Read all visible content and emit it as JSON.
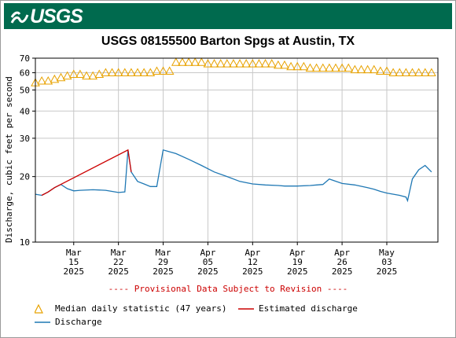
{
  "header": {
    "logo_text": "USGS",
    "logo_icon": "usgs-wave-logo-icon",
    "brand_color": "#006a4e"
  },
  "chart_data": {
    "type": "line",
    "title": "USGS 08155500 Barton Spgs at Austin, TX",
    "ylabel": "Discharge, cubic feet per second",
    "yscale": "log",
    "ylim": [
      10,
      70
    ],
    "grid": true,
    "yticks": [
      10,
      20,
      30,
      40,
      50,
      60,
      70
    ],
    "ytick_labels": [
      "10",
      "20",
      "30",
      "40",
      "50",
      "60",
      "70"
    ],
    "xlim": [
      "2025-03-09",
      "2025-05-11"
    ],
    "xticks": [
      {
        "date": "2025-03-15",
        "label": [
          "Mar",
          "15",
          "2025"
        ]
      },
      {
        "date": "2025-03-22",
        "label": [
          "Mar",
          "22",
          "2025"
        ]
      },
      {
        "date": "2025-03-29",
        "label": [
          "Mar",
          "29",
          "2025"
        ]
      },
      {
        "date": "2025-04-05",
        "label": [
          "Apr",
          "05",
          "2025"
        ]
      },
      {
        "date": "2025-04-12",
        "label": [
          "Apr",
          "12",
          "2025"
        ]
      },
      {
        "date": "2025-04-19",
        "label": [
          "Apr",
          "19",
          "2025"
        ]
      },
      {
        "date": "2025-04-26",
        "label": [
          "Apr",
          "26",
          "2025"
        ]
      },
      {
        "date": "2025-05-03",
        "label": [
          "May",
          "03",
          "2025"
        ]
      }
    ],
    "note": "---- Provisional Data Subject to Revision ----",
    "legend_placement": "bottom",
    "series": [
      {
        "name": "Median daily statistic (47 years)",
        "style": "triangle-markers",
        "color": "#e8a200",
        "x": [
          "2025-03-09",
          "2025-03-10",
          "2025-03-11",
          "2025-03-12",
          "2025-03-13",
          "2025-03-14",
          "2025-03-15",
          "2025-03-16",
          "2025-03-17",
          "2025-03-18",
          "2025-03-19",
          "2025-03-20",
          "2025-03-21",
          "2025-03-22",
          "2025-03-23",
          "2025-03-24",
          "2025-03-25",
          "2025-03-26",
          "2025-03-27",
          "2025-03-28",
          "2025-03-29",
          "2025-03-30",
          "2025-03-31",
          "2025-04-01",
          "2025-04-02",
          "2025-04-03",
          "2025-04-04",
          "2025-04-05",
          "2025-04-06",
          "2025-04-07",
          "2025-04-08",
          "2025-04-09",
          "2025-04-10",
          "2025-04-11",
          "2025-04-12",
          "2025-04-13",
          "2025-04-14",
          "2025-04-15",
          "2025-04-16",
          "2025-04-17",
          "2025-04-18",
          "2025-04-19",
          "2025-04-20",
          "2025-04-21",
          "2025-04-22",
          "2025-04-23",
          "2025-04-24",
          "2025-04-25",
          "2025-04-26",
          "2025-04-27",
          "2025-04-28",
          "2025-04-29",
          "2025-04-30",
          "2025-05-01",
          "2025-05-02",
          "2025-05-03",
          "2025-05-04",
          "2025-05-05",
          "2025-05-06",
          "2025-05-07",
          "2025-05-08",
          "2025-05-09",
          "2025-05-10"
        ],
        "values": [
          54,
          55,
          55,
          56,
          57,
          58,
          59,
          59,
          58,
          58,
          59,
          60,
          60,
          60,
          60,
          60,
          60,
          60,
          60,
          61,
          61,
          61,
          67,
          67,
          67,
          67,
          67,
          66,
          66,
          66,
          66,
          66,
          66,
          66,
          66,
          66,
          66,
          66,
          65,
          65,
          64,
          64,
          64,
          63,
          63,
          63,
          63,
          63,
          63,
          63,
          62,
          62,
          62,
          62,
          61,
          61,
          60,
          60,
          60,
          60,
          60,
          60,
          60
        ]
      },
      {
        "name": "Discharge",
        "style": "line",
        "color": "#1f78b4",
        "x": [
          "2025-03-09",
          "2025-03-10",
          "2025-03-11",
          "2025-03-12",
          "2025-03-13",
          "2025-03-14",
          "2025-03-15",
          "2025-03-16",
          "2025-03-18",
          "2025-03-20",
          "2025-03-22",
          "2025-03-23",
          "2025-03-23T12:00",
          "2025-03-24",
          "2025-03-25",
          "2025-03-26",
          "2025-03-27",
          "2025-03-28",
          "2025-03-29",
          "2025-03-31",
          "2025-04-02",
          "2025-04-04",
          "2025-04-06",
          "2025-04-08",
          "2025-04-10",
          "2025-04-12",
          "2025-04-14",
          "2025-04-16",
          "2025-04-17",
          "2025-04-19",
          "2025-04-21",
          "2025-04-22",
          "2025-04-23",
          "2025-04-24",
          "2025-04-26",
          "2025-04-28",
          "2025-04-30",
          "2025-05-01",
          "2025-05-02",
          "2025-05-03",
          "2025-05-05",
          "2025-05-06",
          "2025-05-06T06:00",
          "2025-05-07",
          "2025-05-08",
          "2025-05-09",
          "2025-05-10"
        ],
        "values": [
          16.6,
          16.4,
          17,
          17.8,
          18.4,
          17.6,
          17.2,
          17.3,
          17.4,
          17.3,
          16.9,
          17,
          26.5,
          21,
          19,
          18.5,
          18,
          18,
          26.5,
          25.5,
          24,
          22.5,
          21,
          20,
          19,
          18.5,
          18.3,
          18.2,
          18.1,
          18.1,
          18.2,
          18.3,
          18.4,
          19.5,
          18.6,
          18.3,
          17.8,
          17.5,
          17.1,
          16.8,
          16.4,
          16.1,
          15.5,
          19.5,
          21.5,
          22.5,
          21
        ]
      },
      {
        "name": "Estimated discharge",
        "style": "line",
        "color": "#cc0000",
        "x": [
          "2025-03-10",
          "2025-03-11",
          "2025-03-12",
          "2025-03-23T12:00",
          "2025-03-24"
        ],
        "values": [
          16.4,
          17,
          17.8,
          26.5,
          21
        ]
      }
    ],
    "legend": [
      {
        "name": "Median daily statistic (47 years)",
        "symbol": "triangle",
        "color": "#e8a200"
      },
      {
        "name": "Estimated discharge",
        "symbol": "line",
        "color": "#cc0000"
      },
      {
        "name": "Discharge",
        "symbol": "line",
        "color": "#1f78b4"
      }
    ]
  }
}
